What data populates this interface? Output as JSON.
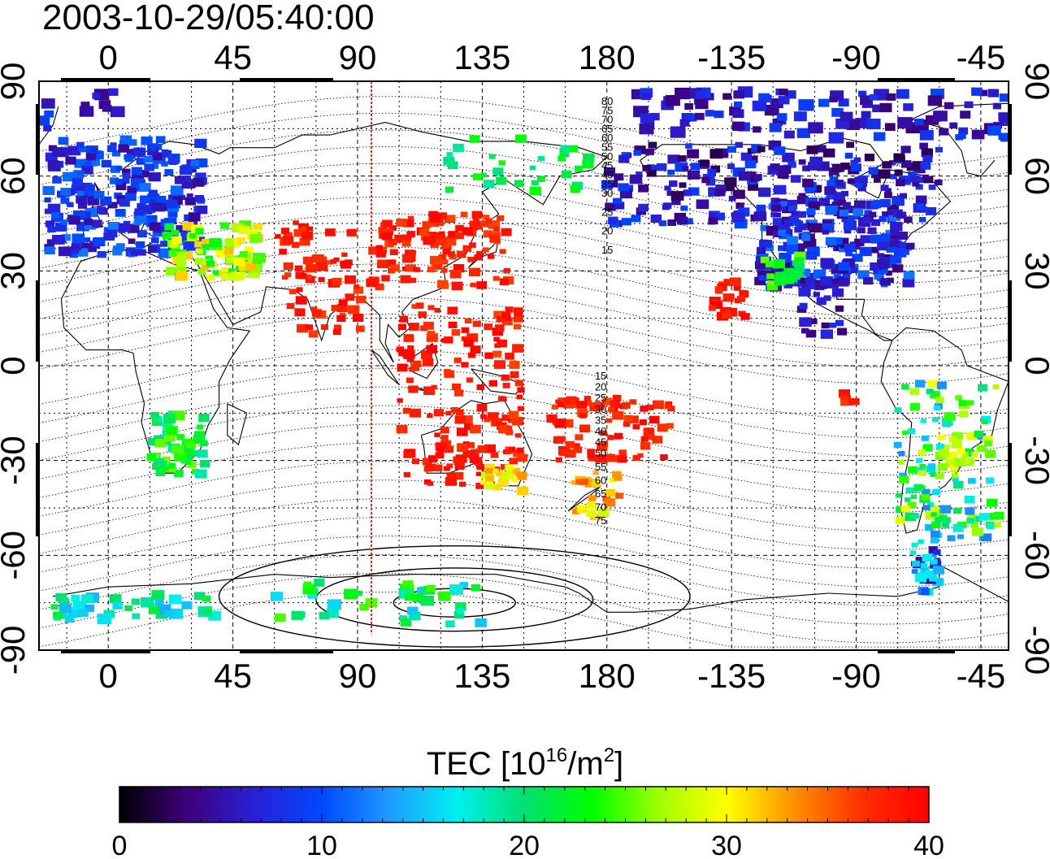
{
  "title": "2003-10-29/05:40:00",
  "map": {
    "x_ticks_top": [
      "0",
      "45",
      "90",
      "135",
      "180",
      "-135",
      "-90",
      "-45"
    ],
    "x_ticks_bottom": [
      "0",
      "45",
      "90",
      "135",
      "180",
      "-135",
      "-90",
      "-45"
    ],
    "y_ticks_left": [
      "90",
      "60",
      "30",
      "0",
      "-30",
      "-60",
      "-90"
    ],
    "y_ticks_right": [
      "90",
      "60",
      "30",
      "0",
      "-30",
      "-60",
      "-90"
    ],
    "lon_range": [
      -25,
      325
    ],
    "lat_range": [
      -90,
      90
    ],
    "grid_step_degrees": 15,
    "highlight_meridian_longitude": 95,
    "highlight_meridian_color": "#e8281e",
    "contour_labels_north": [
      "80",
      "75",
      "70",
      "65",
      "60",
      "55",
      "50",
      "45",
      "40",
      "35",
      "30",
      "25",
      "20",
      "15"
    ],
    "contour_labels_south": [
      "15",
      "20",
      "25",
      "30",
      "35",
      "40",
      "45",
      "50",
      "55",
      "60",
      "65",
      "70",
      "75"
    ]
  },
  "colorbar": {
    "title_main": "TEC  [10",
    "title_exp1": "16",
    "title_mid": "/m",
    "title_exp2": "2",
    "title_end": "]",
    "tick_labels": [
      "0",
      "10",
      "20",
      "30",
      "40"
    ],
    "range": [
      0,
      40
    ],
    "colors": [
      "#000000",
      "#3d007a",
      "#2a1fd6",
      "#0048ff",
      "#1e9bff",
      "#00f0f0",
      "#00e070",
      "#00ff00",
      "#a0ff00",
      "#ffff00",
      "#ff9000",
      "#ff3000",
      "#ff0000"
    ]
  }
}
